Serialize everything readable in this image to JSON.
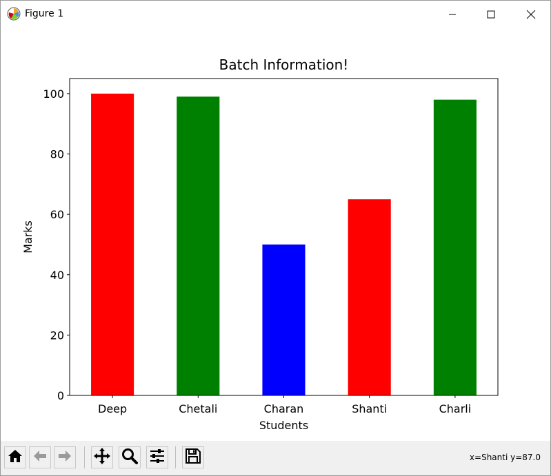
{
  "window": {
    "title": "Figure 1",
    "icons": {
      "app": "matplotlib-logo-icon",
      "minimize": "minimize-icon",
      "maximize": "maximize-icon",
      "close": "close-icon"
    }
  },
  "toolbar": {
    "buttons": [
      "home-icon",
      "back-arrow-icon",
      "forward-arrow-icon",
      "pan-icon",
      "zoom-icon",
      "configure-subplots-icon",
      "save-icon"
    ],
    "coords": "x=Shanti y=87.0"
  },
  "chart_data": {
    "type": "bar",
    "title": "Batch Information!",
    "xlabel": "Students",
    "ylabel": "Marks",
    "categories": [
      "Deep",
      "Chetali",
      "Charan",
      "Shanti",
      "Charli"
    ],
    "values": [
      100,
      99,
      50,
      65,
      98
    ],
    "colors": [
      "#ff0000",
      "#008000",
      "#0000ff",
      "#ff0000",
      "#008000"
    ],
    "ylim": [
      0,
      105
    ],
    "yticks": [
      0,
      20,
      40,
      60,
      80,
      100
    ],
    "grid": false
  }
}
